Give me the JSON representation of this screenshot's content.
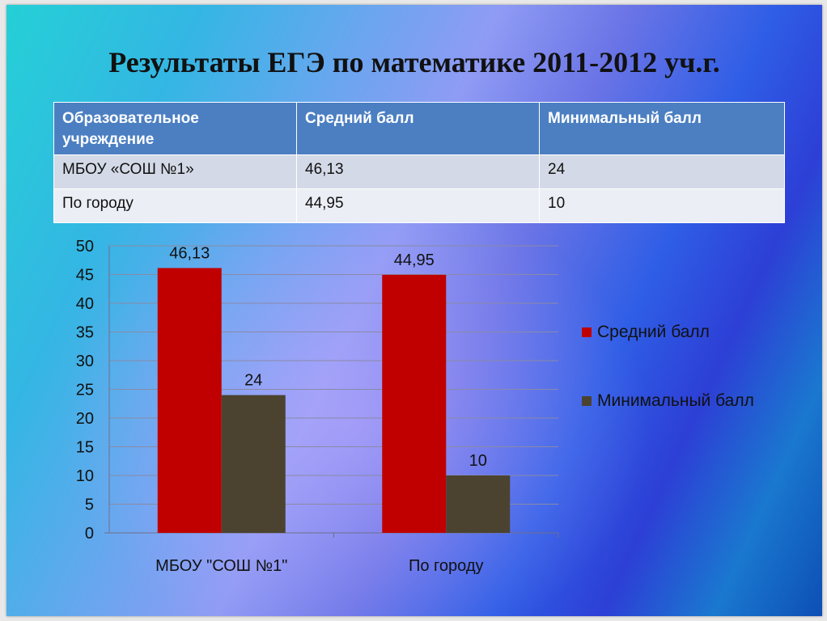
{
  "slide": {
    "title": "Результаты ЕГЭ по математике 2011-2012 уч.г."
  },
  "table": {
    "headers": [
      "Образовательное учреждение",
      "Средний балл",
      "Минимальный балл"
    ],
    "rows": [
      [
        "МБОУ «СОШ №1»",
        "46,13",
        "24"
      ],
      [
        "По городу",
        "44,95",
        "10"
      ]
    ]
  },
  "chart_data": {
    "type": "bar",
    "categories": [
      "МБОУ \"СОШ №1\"",
      "По городу"
    ],
    "series": [
      {
        "name": "Средний балл",
        "values": [
          46.13,
          44.95
        ],
        "labels": [
          "46,13",
          "44,95"
        ],
        "color": "#c00000"
      },
      {
        "name": "Минимальный балл",
        "values": [
          24,
          10
        ],
        "labels": [
          "24",
          "10"
        ],
        "color": "#4b432f"
      }
    ],
    "ylim": [
      0,
      50
    ],
    "yticks": [
      0,
      5,
      10,
      15,
      20,
      25,
      30,
      35,
      40,
      45,
      50
    ],
    "grid": true,
    "legend": "right",
    "title": "",
    "xlabel": "",
    "ylabel": ""
  },
  "colors": {
    "header_bg": "#4b7fc2",
    "row_odd": "#d3d9e6",
    "row_even": "#ebeef4",
    "grid": "#8a8aa6"
  }
}
